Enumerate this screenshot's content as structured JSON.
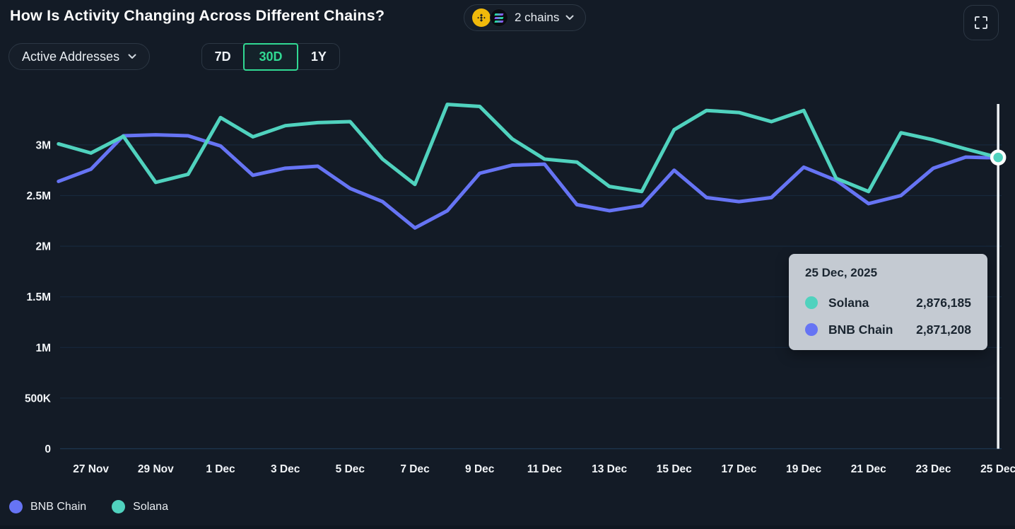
{
  "header": {
    "title": "How Is Activity Changing Across Different Chains?",
    "chains_button": {
      "label": "2 chains",
      "icons": [
        "bnb-coin",
        "solana-coin"
      ]
    }
  },
  "controls": {
    "metric_label": "Active Addresses",
    "ranges": [
      {
        "label": "7D",
        "active": false
      },
      {
        "label": "30D",
        "active": true
      },
      {
        "label": "1Y",
        "active": false
      }
    ]
  },
  "tooltip": {
    "date": "25 Dec, 2025",
    "rows": [
      {
        "name": "Solana",
        "value": "2,876,185",
        "color": "#50d2be"
      },
      {
        "name": "BNB Chain",
        "value": "2,871,208",
        "color": "#6674f4"
      }
    ]
  },
  "legend": [
    {
      "name": "BNB Chain",
      "color": "#6674f4"
    },
    {
      "name": "Solana",
      "color": "#50d2be"
    }
  ],
  "colors": {
    "background": "#131b26",
    "accent_green": "#31d993",
    "grid": "#17293c",
    "baseline": "#1e3750",
    "crosshair": "#eef1f4",
    "tooltip_bg": "#c4cad2"
  },
  "chart_data": {
    "type": "line",
    "title": "How Is Activity Changing Across Different Chains?",
    "metric": "Active Addresses",
    "range": "30D",
    "grid": true,
    "legend_position": "bottom",
    "categories": [
      "26 Nov",
      "27 Nov",
      "28 Nov",
      "29 Nov",
      "30 Nov",
      "1 Dec",
      "2 Dec",
      "3 Dec",
      "4 Dec",
      "5 Dec",
      "6 Dec",
      "7 Dec",
      "8 Dec",
      "9 Dec",
      "10 Dec",
      "11 Dec",
      "12 Dec",
      "13 Dec",
      "14 Dec",
      "15 Dec",
      "16 Dec",
      "17 Dec",
      "18 Dec",
      "19 Dec",
      "20 Dec",
      "21 Dec",
      "22 Dec",
      "23 Dec",
      "24 Dec",
      "25 Dec"
    ],
    "series": [
      {
        "name": "BNB Chain",
        "color": "#6674f4",
        "values": [
          2640000,
          2760000,
          3090000,
          3100000,
          3090000,
          2990000,
          2700000,
          2770000,
          2790000,
          2570000,
          2440000,
          2180000,
          2350000,
          2720000,
          2800000,
          2810000,
          2410000,
          2350000,
          2400000,
          2750000,
          2480000,
          2440000,
          2480000,
          2780000,
          2650000,
          2420000,
          2500000,
          2770000,
          2880000,
          2871208
        ]
      },
      {
        "name": "Solana",
        "color": "#50d2be",
        "values": [
          3010000,
          2920000,
          3085000,
          2630000,
          2710000,
          3270000,
          3080000,
          3190000,
          3220000,
          3230000,
          2860000,
          2610000,
          3400000,
          3380000,
          3060000,
          2860000,
          2830000,
          2590000,
          2540000,
          3150000,
          3340000,
          3320000,
          3230000,
          3340000,
          2670000,
          2540000,
          3120000,
          3050000,
          2960000,
          2876185
        ]
      }
    ],
    "y_axis": {
      "range": [
        0,
        3500000
      ],
      "ticks": [
        {
          "value": 0,
          "label": "0"
        },
        {
          "value": 500000,
          "label": "500K"
        },
        {
          "value": 1000000,
          "label": "1M"
        },
        {
          "value": 1500000,
          "label": "1.5M"
        },
        {
          "value": 2000000,
          "label": "2M"
        },
        {
          "value": 2500000,
          "label": "2.5M"
        },
        {
          "value": 3000000,
          "label": "3M"
        }
      ]
    },
    "x_axis": {
      "tick_indices": [
        1,
        3,
        5,
        7,
        9,
        11,
        13,
        15,
        17,
        19,
        21,
        23,
        25,
        27,
        29
      ]
    },
    "highlight": {
      "index": 29,
      "date": "25 Dec, 2025",
      "solana": 2876185,
      "bnb_chain": 2871208
    }
  }
}
